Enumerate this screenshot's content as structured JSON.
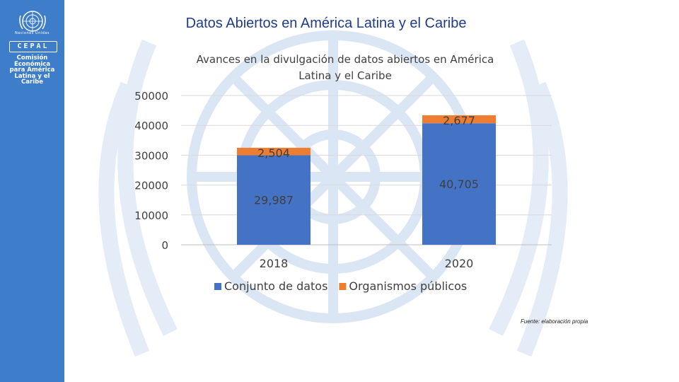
{
  "header": {
    "title": "Datos Abiertos en América Latina y el Caribe"
  },
  "sidebar": {
    "un_caption": "Naciones Unidas",
    "cepal": "CEPAL",
    "org_lines": [
      "Comisión",
      "Económica",
      "para América",
      "Latina y el",
      "Caribe"
    ]
  },
  "source_note": "Fuente: elaboración propia",
  "colors": {
    "sidebar": "#3d7dca",
    "title": "#1f3c88",
    "series1": "#4472c4",
    "series2": "#ed7d31",
    "watermark": "#dbe6f4"
  },
  "chart_data": {
    "type": "bar",
    "stacked": true,
    "title": "Avances en la divulgación de datos abiertos en América Latina y el Caribe",
    "title_lines": [
      "Avances en la divulgación de datos abiertos en América",
      "Latina y el Caribe"
    ],
    "categories": [
      "2018",
      "2020"
    ],
    "series": [
      {
        "name": "Conjunto de datos",
        "values": [
          29987,
          40705
        ],
        "labels": [
          "29,987",
          "40,705"
        ],
        "color": "#4472c4"
      },
      {
        "name": "Organismos públicos",
        "values": [
          2504,
          2677
        ],
        "labels": [
          "2,504",
          "2,677"
        ],
        "color": "#ed7d31"
      }
    ],
    "ylim": [
      0,
      50000
    ],
    "yticks": [
      0,
      10000,
      20000,
      30000,
      40000,
      50000
    ],
    "ytick_labels": [
      "0",
      "10000",
      "20000",
      "30000",
      "40000",
      "50000"
    ],
    "grid": true,
    "legend": "bottom"
  }
}
